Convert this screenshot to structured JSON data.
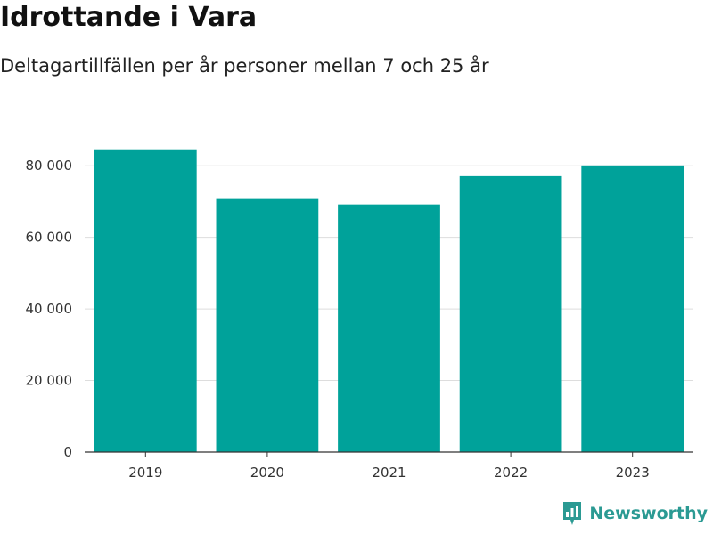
{
  "chart_data": {
    "type": "bar",
    "title": "Idrottande i Vara",
    "subtitle": "Deltagartillfällen per år personer mellan 7 och 25 år",
    "categories": [
      "2019",
      "2020",
      "2021",
      "2022",
      "2023"
    ],
    "values": [
      84600,
      70700,
      69200,
      77100,
      80100
    ],
    "ylim": [
      0,
      90000
    ],
    "yticks": [
      0,
      20000,
      40000,
      60000,
      80000
    ],
    "ytick_labels": [
      "0",
      "20 000",
      "40 000",
      "60 000",
      "80 000"
    ],
    "grid": true,
    "bar_color": "#00a29a",
    "grid_color": "#dddddd"
  },
  "brand": {
    "name": "Newsworthy",
    "icon": "newsworthy-logo-icon",
    "color": "#2b9a93"
  }
}
